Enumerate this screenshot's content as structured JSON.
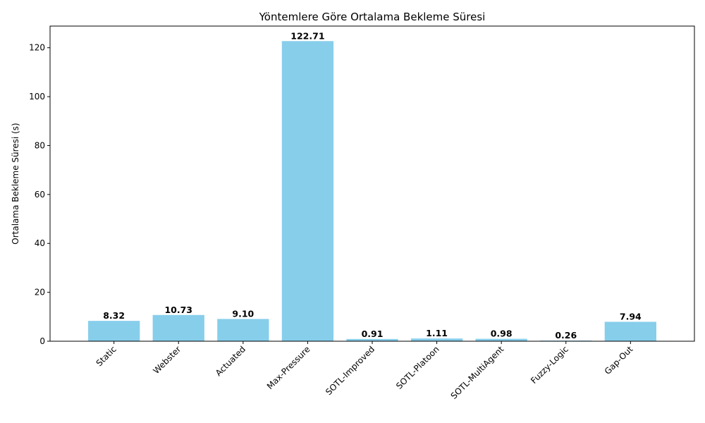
{
  "chart_data": {
    "type": "bar",
    "title": "Yöntemlere Göre Ortalama Bekleme Süresi",
    "xlabel": "",
    "ylabel": "Ortalama Bekleme Süresi (s)",
    "categories": [
      "Static",
      "Webster",
      "Actuated",
      "Max-Pressure",
      "SOTL-Improved",
      "SOTL-Platoon",
      "SOTL-MultiAgent",
      "Fuzzy-Logic",
      "Gap-Out"
    ],
    "values": [
      8.32,
      10.73,
      9.1,
      122.71,
      0.91,
      1.11,
      0.98,
      0.26,
      7.94
    ],
    "value_labels": [
      "8.32",
      "10.73",
      "9.10",
      "122.71",
      "0.91",
      "1.11",
      "0.98",
      "0.26",
      "7.94"
    ],
    "ylim": [
      0,
      128.85
    ],
    "yticks": [
      0,
      20,
      40,
      60,
      80,
      100,
      120
    ],
    "bar_color": "#87ceeb",
    "grid": false,
    "legend": "none"
  }
}
